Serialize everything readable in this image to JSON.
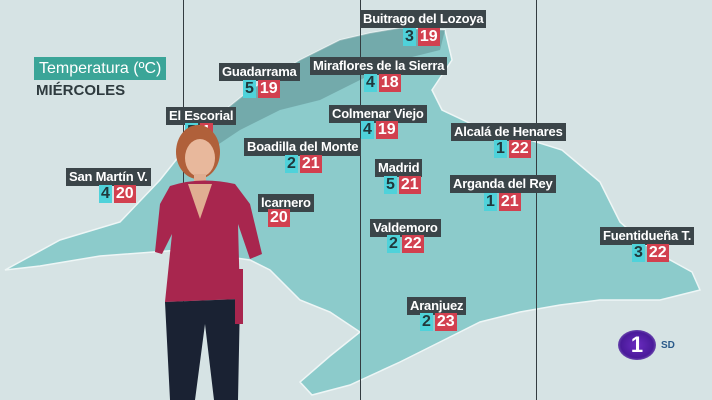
{
  "header": {
    "title": "Temperatura (ºC)",
    "day": "MIÉRCOLES"
  },
  "colors": {
    "background": "#d6e3e4",
    "region": "#8ccbcb",
    "label_bg": "#3b4549",
    "min_bg": "#4fd2da",
    "max_bg": "#d2404f",
    "title_bg": "#3ba598"
  },
  "stations": [
    {
      "name": "Buitrago del Lozoya",
      "min": "3",
      "max": "19"
    },
    {
      "name": "Miraflores de la Sierra",
      "min": "4",
      "max": "18"
    },
    {
      "name": "Guadarrama",
      "min": "5",
      "max": "19"
    },
    {
      "name": "Colmenar Viejo",
      "min": "4",
      "max": "19"
    },
    {
      "name": "El Escorial",
      "min": "5",
      "max": "1"
    },
    {
      "name": "Alcalá de Henares",
      "min": "1",
      "max": "22"
    },
    {
      "name": "Boadilla del Monte",
      "min": "2",
      "max": "21"
    },
    {
      "name": "Madrid",
      "min": "5",
      "max": "21"
    },
    {
      "name": "Arganda del Rey",
      "min": "1",
      "max": "21"
    },
    {
      "name": "San Martín  V.",
      "min": "4",
      "max": "20"
    },
    {
      "name": "lcarnero",
      "min": "",
      "max": "20"
    },
    {
      "name": "Valdemoro",
      "min": "2",
      "max": "22"
    },
    {
      "name": "Fuentidueña T.",
      "min": "3",
      "max": "22"
    },
    {
      "name": "Aranjuez",
      "min": "2",
      "max": "23"
    }
  ],
  "channel": {
    "logo": "1",
    "quality": "SD"
  }
}
